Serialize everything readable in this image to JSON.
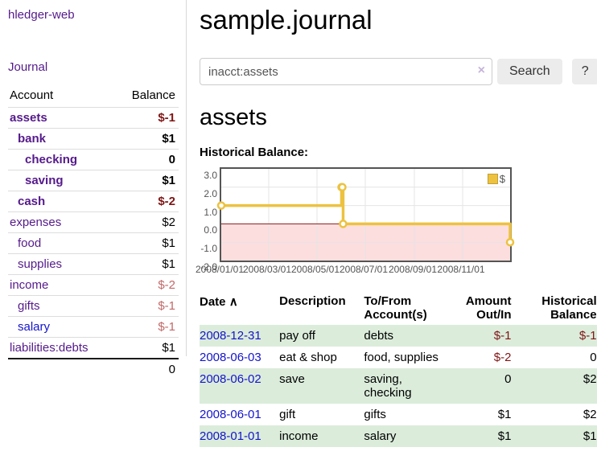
{
  "brand": "hledger-web",
  "nav": {
    "journal": "Journal"
  },
  "sidebar": {
    "header": {
      "account": "Account",
      "balance": "Balance"
    },
    "accounts": [
      {
        "name": "assets",
        "indent": 1,
        "balance": "$-1",
        "emph": true,
        "neg": "strong",
        "link": "visited"
      },
      {
        "name": "bank",
        "indent": 2,
        "balance": "$1",
        "emph": true,
        "neg": null,
        "link": "visited"
      },
      {
        "name": "checking",
        "indent": 3,
        "balance": "0",
        "emph": true,
        "neg": null,
        "link": "visited"
      },
      {
        "name": "saving",
        "indent": 3,
        "balance": "$1",
        "emph": true,
        "neg": null,
        "link": "visited"
      },
      {
        "name": "cash",
        "indent": 2,
        "balance": "$-2",
        "emph": true,
        "neg": "strong",
        "link": "visited"
      },
      {
        "name": "expenses",
        "indent": 1,
        "balance": "$2",
        "emph": false,
        "neg": null,
        "link": "visited"
      },
      {
        "name": "food",
        "indent": 2,
        "balance": "$1",
        "emph": false,
        "neg": null,
        "link": "visited"
      },
      {
        "name": "supplies",
        "indent": 2,
        "balance": "$1",
        "emph": false,
        "neg": null,
        "link": "visited"
      },
      {
        "name": "income",
        "indent": 1,
        "balance": "$-2",
        "emph": false,
        "neg": "soft",
        "link": "visited"
      },
      {
        "name": "gifts",
        "indent": 2,
        "balance": "$-1",
        "emph": false,
        "neg": "soft",
        "link": "visited"
      },
      {
        "name": "salary",
        "indent": 2,
        "balance": "$-1",
        "emph": false,
        "neg": "soft",
        "link": "new"
      },
      {
        "name": "liabilities:debts",
        "indent": 1,
        "balance": "$1",
        "emph": false,
        "neg": null,
        "link": "visited"
      }
    ],
    "total": "0"
  },
  "header": {
    "title": "sample.journal"
  },
  "search": {
    "value": "inacct:assets",
    "clear": "×",
    "search_button": "Search",
    "help_button": "?"
  },
  "account_page": {
    "title": "assets",
    "section_label": "Historical Balance:"
  },
  "chart_data": {
    "type": "line",
    "step": true,
    "title": "Historical Balance",
    "series": [
      {
        "name": "$",
        "color": "#edc240",
        "points": [
          [
            "2008-01-01",
            1.0
          ],
          [
            "2008-06-01",
            2.0
          ],
          [
            "2008-06-02",
            2.0
          ],
          [
            "2008-06-03",
            0.0
          ],
          [
            "2008-12-31",
            -1.0
          ]
        ]
      }
    ],
    "xlim": [
      "2008-01-01",
      "2008-12-31"
    ],
    "ylim": [
      -2.0,
      3.0
    ],
    "x_ticks": [
      "2008/01/01",
      "2008/03/01",
      "2008/05/01",
      "2008/07/01",
      "2008/09/01",
      "2008/11/01"
    ],
    "x_tick_dates": [
      "2008-01-01",
      "2008-03-01",
      "2008-05-01",
      "2008-07-01",
      "2008-09-01",
      "2008-11-01"
    ],
    "y_ticks": [
      "3.0",
      "2.0",
      "1.0",
      "0.0",
      "-1.0",
      "-2.0"
    ],
    "grid": true,
    "legend": {
      "position": "top-right",
      "label": "$"
    },
    "colors": {
      "series": "#edc240",
      "marker_fill": "#ffffff",
      "negative_region": "#fcdede",
      "zero_line": "#8b1a1a",
      "grid": "#e4e4e4",
      "border": "#545454",
      "tick_text": "#545454"
    }
  },
  "register": {
    "columns": [
      "Date",
      "Description",
      "To/From Account(s)",
      "Amount Out/In",
      "Historical Balance"
    ],
    "sort_indicator": "∧",
    "rows": [
      {
        "date": "2008-12-31",
        "description": "pay off",
        "accounts": "debts",
        "amount": "$-1",
        "balance": "$-1"
      },
      {
        "date": "2008-06-03",
        "description": "eat & shop",
        "accounts": "food, supplies",
        "amount": "$-2",
        "balance": "0"
      },
      {
        "date": "2008-06-02",
        "description": "save",
        "accounts": "saving, checking",
        "amount": "0",
        "balance": "$2"
      },
      {
        "date": "2008-06-01",
        "description": "gift",
        "accounts": "gifts",
        "amount": "$1",
        "balance": "$2"
      },
      {
        "date": "2008-01-01",
        "description": "income",
        "accounts": "salary",
        "amount": "$1",
        "balance": "$1"
      }
    ]
  },
  "colors": {
    "link_purple": "#551a8b",
    "link_blue": "#1414cc",
    "negative_strong": "#7f1515",
    "negative_soft": "#c26868",
    "row_green": "#dbecdb",
    "button_bg": "#ececec"
  }
}
